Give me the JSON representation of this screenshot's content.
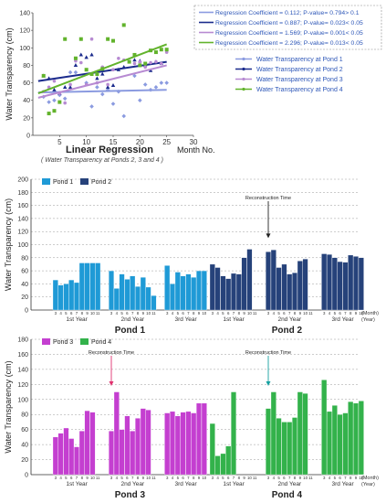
{
  "colors": {
    "pond1": "#1f9ad6",
    "pond2": "#26427a",
    "pond3": "#c43fd0",
    "pond4": "#33b24b",
    "reg_p1": "#8b9be0",
    "reg_p2": "#1a2a8c",
    "reg_p3": "#b78ad2",
    "reg_p4": "#62b32c",
    "grid": "#999999",
    "arrow_p3": "#e0306e",
    "arrow_p4": "#15a0a0"
  },
  "chart_data": [
    {
      "type": "scatter",
      "xlabel": "Linear Regression",
      "x_suffix": "Month No.",
      "ylabel": "Water Transparency (cm)",
      "note": "( Water Transparency at Ponds 2, 3 and 4 )",
      "xlim": [
        0,
        30
      ],
      "ylim": [
        0,
        140
      ],
      "xticks": [
        5,
        10,
        15,
        20,
        25,
        30
      ],
      "yticks": [
        0,
        20,
        40,
        60,
        80,
        100,
        120,
        140
      ],
      "grid": false,
      "regression_legend": [
        {
          "coef_label": "Regression Coefficient = ",
          "coef": "0.112",
          "p_label": "; P-value= ",
          "p": "0.794> 0.1"
        },
        {
          "coef_label": "Regression Coefficient = ",
          "coef": "0.887",
          "p_label": "; P-value= ",
          "p": "0.023< 0.05"
        },
        {
          "coef_label": "Regression Coefficient = ",
          "coef": "1.569",
          "p_label": "; P-value= ",
          "p": "0.001< 0.05"
        },
        {
          "coef_label": "Regression Coefficient = ",
          "coef": "2.296",
          "p_label": "; P-value= ",
          "p": "0.013< 0.05"
        }
      ],
      "series": [
        {
          "name": "Water Transparency at Pond 1",
          "line": [
            [
              1,
              49
            ],
            [
              25,
              52
            ]
          ],
          "points": [
            [
              2,
              44
            ],
            [
              3,
              38
            ],
            [
              4,
              40
            ],
            [
              5,
              46
            ],
            [
              6,
              42
            ],
            [
              7,
              72
            ],
            [
              8,
              72
            ],
            [
              10,
              60
            ],
            [
              11,
              33
            ],
            [
              12,
              55
            ],
            [
              13,
              47
            ],
            [
              14,
              52
            ],
            [
              15,
              36
            ],
            [
              16,
              50
            ],
            [
              17,
              22
            ],
            [
              19,
              68
            ],
            [
              20,
              40
            ],
            [
              21,
              58
            ],
            [
              22,
              52
            ],
            [
              23,
              55
            ],
            [
              24,
              60
            ],
            [
              25,
              60
            ]
          ]
        },
        {
          "name": "Water Transparency at Pond 2",
          "line": [
            [
              1,
              62
            ],
            [
              25,
              84
            ]
          ],
          "points": [
            [
              2,
              68
            ],
            [
              3,
              65
            ],
            [
              4,
              52
            ],
            [
              5,
              48
            ],
            [
              6,
              55
            ],
            [
              7,
              55
            ],
            [
              8,
              80
            ],
            [
              9,
              92
            ],
            [
              10,
              89
            ],
            [
              11,
              92
            ],
            [
              12,
              65
            ],
            [
              13,
              70
            ],
            [
              14,
              55
            ],
            [
              15,
              57
            ],
            [
              16,
              75
            ],
            [
              17,
              78
            ],
            [
              19,
              86
            ],
            [
              20,
              85
            ],
            [
              21,
              80
            ],
            [
              22,
              74
            ],
            [
              23,
              84
            ],
            [
              24,
              82
            ]
          ]
        },
        {
          "name": "Water Transparency at Pond 3",
          "line": [
            [
              1,
              43
            ],
            [
              25,
              80
            ]
          ],
          "points": [
            [
              2,
              50
            ],
            [
              3,
              55
            ],
            [
              4,
              62
            ],
            [
              5,
              48
            ],
            [
              6,
              37
            ],
            [
              7,
              58
            ],
            [
              8,
              85
            ],
            [
              9,
              83
            ],
            [
              10,
              58
            ],
            [
              11,
              110
            ],
            [
              12,
              60
            ],
            [
              13,
              78
            ],
            [
              14,
              58
            ],
            [
              15,
              75
            ],
            [
              16,
              88
            ],
            [
              17,
              86
            ],
            [
              19,
              82
            ],
            [
              20,
              84
            ],
            [
              21,
              78
            ],
            [
              22,
              83
            ],
            [
              23,
              84
            ],
            [
              24,
              82
            ],
            [
              25,
              95
            ]
          ]
        },
        {
          "name": "Water Transparency at Pond 4",
          "line": [
            [
              1,
              48
            ],
            [
              25,
              104
            ]
          ],
          "points": [
            [
              2,
              68
            ],
            [
              3,
              25
            ],
            [
              4,
              28
            ],
            [
              5,
              38
            ],
            [
              6,
              110
            ],
            [
              8,
              88
            ],
            [
              9,
              110
            ],
            [
              10,
              75
            ],
            [
              11,
              70
            ],
            [
              12,
              70
            ],
            [
              13,
              76
            ],
            [
              14,
              110
            ],
            [
              15,
              108
            ],
            [
              17,
              126
            ],
            [
              18,
              84
            ],
            [
              19,
              92
            ],
            [
              20,
              80
            ],
            [
              21,
              82
            ],
            [
              22,
              97
            ],
            [
              23,
              95
            ],
            [
              24,
              98
            ],
            [
              25,
              98
            ]
          ]
        }
      ]
    },
    {
      "type": "bar",
      "ylabel": "Water Transparency (cm)",
      "ylim": [
        0,
        200
      ],
      "yticks": [
        0,
        20,
        40,
        60,
        80,
        100,
        120,
        140,
        160,
        180,
        200
      ],
      "grid": true,
      "annotation": "Reconstruction Time",
      "axis_unit": "(Month)",
      "axis_unit2": "(Year)",
      "legend": [
        "Pond 1",
        "Pond 2"
      ],
      "panels": [
        {
          "name": "Pond 1",
          "years": [
            {
              "label": "1st Year",
              "months": [
                "3",
                "4",
                "5",
                "6",
                "7",
                "8",
                "9",
                "10",
                "11"
              ],
              "values": [
                46,
                38,
                40,
                46,
                42,
                72,
                72,
                72,
                72
              ]
            },
            {
              "label": "2nd Year",
              "months": [
                "3",
                "4",
                "5",
                "6",
                "7",
                "8",
                "9",
                "10",
                "11"
              ],
              "values": [
                60,
                33,
                55,
                47,
                52,
                36,
                50,
                35,
                22
              ]
            },
            {
              "label": "3rd Year",
              "months": [
                "3",
                "4",
                "5",
                "6",
                "7",
                "8",
                "9",
                "10"
              ],
              "values": [
                68,
                40,
                58,
                52,
                55,
                50,
                60,
                60
              ]
            }
          ]
        },
        {
          "name": "Pond 2",
          "years": [
            {
              "label": "1st Year",
              "months": [
                "3",
                "4",
                "5",
                "6",
                "7",
                "8",
                "9",
                "10",
                "11"
              ],
              "values": [
                70,
                65,
                52,
                48,
                56,
                55,
                80,
                93,
                null
              ]
            },
            {
              "label": "2nd Year",
              "months": [
                "3",
                "4",
                "5",
                "6",
                "7",
                "8",
                "9",
                "10",
                "11"
              ],
              "values": [
                89,
                92,
                65,
                70,
                55,
                57,
                75,
                78,
                null
              ]
            },
            {
              "label": "3rd Year",
              "months": [
                "3",
                "4",
                "5",
                "6",
                "7",
                "8",
                "9",
                "10"
              ],
              "values": [
                86,
                85,
                80,
                74,
                73,
                84,
                82,
                80
              ]
            }
          ]
        }
      ],
      "arrow_panel": 1,
      "arrow_year": 1,
      "arrow_index": 0
    },
    {
      "type": "bar",
      "ylabel": "Water Transparency (cm)",
      "ylim": [
        0,
        180
      ],
      "yticks": [
        0,
        20,
        40,
        60,
        80,
        100,
        120,
        140,
        160,
        180
      ],
      "grid": true,
      "annotation": "Reconstruction Time",
      "axis_unit": "(Month)",
      "axis_unit2": "(Year)",
      "legend": [
        "Pond 3",
        "Pond 4"
      ],
      "panels": [
        {
          "name": "Pond 3",
          "years": [
            {
              "label": "1st Year",
              "months": [
                "3",
                "4",
                "5",
                "6",
                "7",
                "8",
                "9",
                "10",
                "11"
              ],
              "values": [
                50,
                55,
                62,
                48,
                37,
                58,
                85,
                83,
                null
              ]
            },
            {
              "label": "2nd Year",
              "months": [
                "3",
                "4",
                "5",
                "6",
                "7",
                "8",
                "9",
                "10",
                "11"
              ],
              "values": [
                58,
                110,
                60,
                78,
                58,
                75,
                88,
                86,
                null
              ]
            },
            {
              "label": "3rd Year",
              "months": [
                "3",
                "4",
                "5",
                "6",
                "7",
                "8",
                "9",
                "10"
              ],
              "values": [
                82,
                84,
                78,
                83,
                84,
                82,
                95,
                95
              ]
            }
          ]
        },
        {
          "name": "Pond 4",
          "years": [
            {
              "label": "1st Year",
              "months": [
                "3",
                "4",
                "5",
                "6",
                "7",
                "8",
                "9",
                "10",
                "11"
              ],
              "values": [
                68,
                25,
                28,
                38,
                110,
                null,
                null,
                null,
                null
              ]
            },
            {
              "label": "2nd Year",
              "months": [
                "3",
                "4",
                "5",
                "6",
                "7",
                "8",
                "9",
                "10",
                "11"
              ],
              "values": [
                88,
                110,
                75,
                70,
                70,
                76,
                110,
                108,
                null
              ]
            },
            {
              "label": "3rd Year",
              "months": [
                "3",
                "4",
                "5",
                "6",
                "7",
                "8",
                "9",
                "10"
              ],
              "values": [
                126,
                84,
                92,
                80,
                82,
                97,
                95,
                98
              ]
            }
          ]
        }
      ],
      "arrow_panel_a": 0,
      "arrow_year_a": 1,
      "arrow_index_a": 0,
      "arrow_panel_b": 1,
      "arrow_year_b": 1,
      "arrow_index_b": 0
    }
  ]
}
